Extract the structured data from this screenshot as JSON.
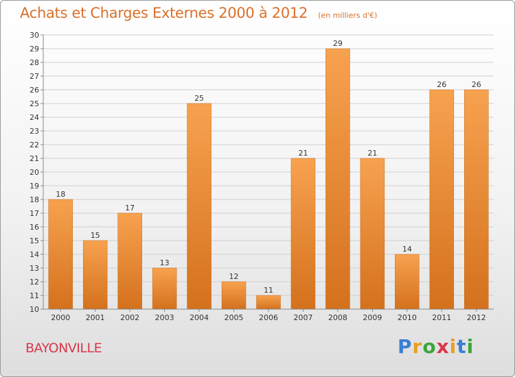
{
  "header": {
    "title": "Achats et Charges Externes 2000 à 2012",
    "unit": "(en milliers d'€)"
  },
  "footer": {
    "commune": "BAYONVILLE",
    "logo": {
      "letters": [
        "P",
        "r",
        "o",
        "x",
        "i",
        "t",
        "i"
      ],
      "colors": [
        "#3a7fd5",
        "#e8a020",
        "#3aa63a",
        "#d9384a",
        "#e8a020",
        "#3a7fd5",
        "#3aa63a"
      ]
    }
  },
  "chart_data": {
    "type": "bar",
    "title": "Achats et Charges Externes 2000 à 2012",
    "subtitle": "(en milliers d'€)",
    "categories": [
      "2000",
      "2001",
      "2002",
      "2003",
      "2004",
      "2005",
      "2006",
      "2007",
      "2008",
      "2009",
      "2010",
      "2011",
      "2012"
    ],
    "values": [
      18,
      15,
      17,
      13,
      25,
      12,
      11,
      21,
      29,
      21,
      14,
      26,
      26
    ],
    "ylim": [
      10,
      30
    ],
    "yticks": [
      10,
      11,
      12,
      13,
      14,
      15,
      16,
      17,
      18,
      19,
      20,
      21,
      22,
      23,
      24,
      25,
      26,
      27,
      28,
      29,
      30
    ],
    "grid": true,
    "legend": "none",
    "colors": {
      "bar_light": "#f7a24f",
      "bar_dark": "#d4711d",
      "grid": "#cfcfcf"
    }
  }
}
